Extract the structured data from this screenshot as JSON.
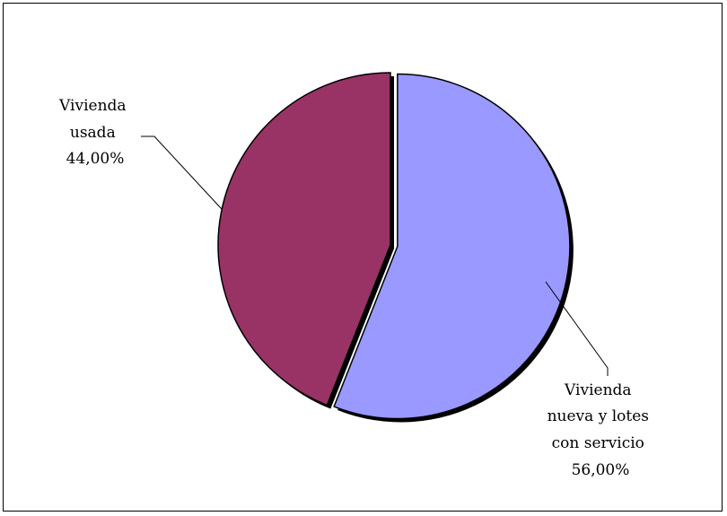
{
  "chart_data": {
    "type": "pie",
    "title": "",
    "slices": [
      {
        "label_lines": [
          "Vivienda",
          "nueva y lotes",
          "con servicio"
        ],
        "label": "Vivienda nueva y lotes con servicio",
        "value": 56.0,
        "value_label": "56,00%",
        "color": "#9999FF",
        "exploded": true
      },
      {
        "label_lines": [
          "Vivienda",
          "usada"
        ],
        "label": "Vivienda usada",
        "value": 44.0,
        "value_label": "44,00%",
        "color": "#993366",
        "exploded": false
      }
    ],
    "legend": "none",
    "data_labels": "outside-with-leader-lines"
  }
}
